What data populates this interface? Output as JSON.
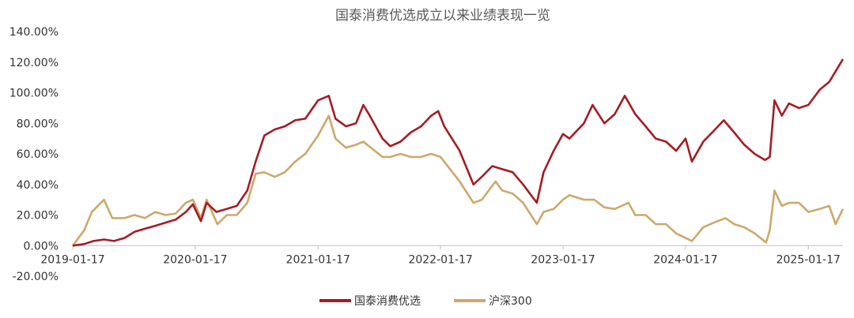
{
  "chart_data": {
    "type": "line",
    "title": "国泰消费优选成立以来业绩表现一览",
    "xlabel": "",
    "ylabel": "",
    "x_ticks": [
      "2019-01-17",
      "2020-01-17",
      "2021-01-17",
      "2022-01-17",
      "2023-01-17",
      "2024-01-17",
      "2025-01-17"
    ],
    "y_ticks": [
      "140.00%",
      "120.00%",
      "100.00%",
      "80.00%",
      "60.00%",
      "40.00%",
      "20.00%",
      "0.00%",
      "-20.00%"
    ],
    "y_tick_values": [
      140,
      120,
      100,
      80,
      60,
      40,
      20,
      0,
      -20
    ],
    "ylim": [
      -20,
      140
    ],
    "xlim": [
      "2019-01-17",
      "2025-04-30"
    ],
    "y_unit": "%",
    "grid": false,
    "legend_position": "bottom",
    "series": [
      {
        "name": "国泰消费优选",
        "color": "#a51c24",
        "points": [
          [
            "2019-01-17",
            0
          ],
          [
            "2019-02-20",
            1
          ],
          [
            "2019-03-20",
            3
          ],
          [
            "2019-04-20",
            4
          ],
          [
            "2019-05-20",
            3
          ],
          [
            "2019-06-20",
            5
          ],
          [
            "2019-07-20",
            9
          ],
          [
            "2019-08-20",
            11
          ],
          [
            "2019-09-20",
            13
          ],
          [
            "2019-10-20",
            15
          ],
          [
            "2019-11-20",
            17
          ],
          [
            "2019-12-20",
            22
          ],
          [
            "2020-01-10",
            27
          ],
          [
            "2020-02-03",
            16
          ],
          [
            "2020-02-20",
            28
          ],
          [
            "2020-03-20",
            22
          ],
          [
            "2020-04-20",
            24
          ],
          [
            "2020-05-20",
            26
          ],
          [
            "2020-06-20",
            36
          ],
          [
            "2020-07-15",
            55
          ],
          [
            "2020-08-10",
            72
          ],
          [
            "2020-09-10",
            76
          ],
          [
            "2020-10-10",
            78
          ],
          [
            "2020-11-10",
            82
          ],
          [
            "2020-12-10",
            83
          ],
          [
            "2021-01-17",
            95
          ],
          [
            "2021-02-18",
            98
          ],
          [
            "2021-03-10",
            83
          ],
          [
            "2021-04-10",
            78
          ],
          [
            "2021-05-10",
            80
          ],
          [
            "2021-06-01",
            92
          ],
          [
            "2021-06-20",
            85
          ],
          [
            "2021-07-28",
            70
          ],
          [
            "2021-08-20",
            65
          ],
          [
            "2021-09-20",
            68
          ],
          [
            "2021-10-20",
            74
          ],
          [
            "2021-11-20",
            78
          ],
          [
            "2021-12-20",
            85
          ],
          [
            "2022-01-10",
            88
          ],
          [
            "2022-01-28",
            78
          ],
          [
            "2022-03-15",
            62
          ],
          [
            "2022-04-25",
            40
          ],
          [
            "2022-05-20",
            45
          ],
          [
            "2022-06-20",
            52
          ],
          [
            "2022-07-20",
            50
          ],
          [
            "2022-08-20",
            48
          ],
          [
            "2022-09-20",
            40
          ],
          [
            "2022-10-31",
            28
          ],
          [
            "2022-11-20",
            48
          ],
          [
            "2022-12-20",
            62
          ],
          [
            "2023-01-17",
            73
          ],
          [
            "2023-02-05",
            70
          ],
          [
            "2023-03-20",
            80
          ],
          [
            "2023-04-15",
            92
          ],
          [
            "2023-05-20",
            80
          ],
          [
            "2023-06-20",
            86
          ],
          [
            "2023-07-20",
            98
          ],
          [
            "2023-08-20",
            86
          ],
          [
            "2023-09-20",
            78
          ],
          [
            "2023-10-20",
            70
          ],
          [
            "2023-11-20",
            68
          ],
          [
            "2023-12-20",
            62
          ],
          [
            "2024-01-17",
            70
          ],
          [
            "2024-02-05",
            55
          ],
          [
            "2024-03-10",
            68
          ],
          [
            "2024-04-10",
            75
          ],
          [
            "2024-05-10",
            82
          ],
          [
            "2024-06-10",
            74
          ],
          [
            "2024-07-10",
            66
          ],
          [
            "2024-08-10",
            60
          ],
          [
            "2024-09-10",
            56
          ],
          [
            "2024-09-24",
            58
          ],
          [
            "2024-10-08",
            95
          ],
          [
            "2024-10-30",
            85
          ],
          [
            "2024-11-20",
            93
          ],
          [
            "2024-12-20",
            90
          ],
          [
            "2025-01-17",
            92
          ],
          [
            "2025-02-20",
            102
          ],
          [
            "2025-03-20",
            107
          ],
          [
            "2025-04-30",
            122
          ]
        ]
      },
      {
        "name": "沪深300",
        "color": "#cda86c",
        "points": [
          [
            "2019-01-17",
            0
          ],
          [
            "2019-02-20",
            10
          ],
          [
            "2019-03-15",
            22
          ],
          [
            "2019-04-20",
            30
          ],
          [
            "2019-05-15",
            18
          ],
          [
            "2019-06-20",
            18
          ],
          [
            "2019-07-20",
            20
          ],
          [
            "2019-08-20",
            18
          ],
          [
            "2019-09-20",
            22
          ],
          [
            "2019-10-20",
            20
          ],
          [
            "2019-11-20",
            21
          ],
          [
            "2019-12-20",
            28
          ],
          [
            "2020-01-10",
            30
          ],
          [
            "2020-02-03",
            18
          ],
          [
            "2020-02-20",
            30
          ],
          [
            "2020-03-23",
            14
          ],
          [
            "2020-04-20",
            20
          ],
          [
            "2020-05-20",
            20
          ],
          [
            "2020-06-20",
            28
          ],
          [
            "2020-07-15",
            47
          ],
          [
            "2020-08-10",
            48
          ],
          [
            "2020-09-10",
            45
          ],
          [
            "2020-10-10",
            48
          ],
          [
            "2020-11-10",
            55
          ],
          [
            "2020-12-10",
            60
          ],
          [
            "2021-01-17",
            72
          ],
          [
            "2021-02-18",
            85
          ],
          [
            "2021-03-10",
            70
          ],
          [
            "2021-04-10",
            64
          ],
          [
            "2021-05-10",
            66
          ],
          [
            "2021-06-01",
            68
          ],
          [
            "2021-07-28",
            58
          ],
          [
            "2021-08-20",
            58
          ],
          [
            "2021-09-20",
            60
          ],
          [
            "2021-10-20",
            58
          ],
          [
            "2021-11-20",
            58
          ],
          [
            "2021-12-20",
            60
          ],
          [
            "2022-01-17",
            58
          ],
          [
            "2022-03-15",
            42
          ],
          [
            "2022-04-25",
            28
          ],
          [
            "2022-05-20",
            30
          ],
          [
            "2022-06-30",
            42
          ],
          [
            "2022-07-20",
            36
          ],
          [
            "2022-08-20",
            34
          ],
          [
            "2022-09-20",
            28
          ],
          [
            "2022-10-31",
            14
          ],
          [
            "2022-11-20",
            22
          ],
          [
            "2022-12-20",
            24
          ],
          [
            "2023-01-17",
            30
          ],
          [
            "2023-02-05",
            33
          ],
          [
            "2023-03-20",
            30
          ],
          [
            "2023-04-20",
            30
          ],
          [
            "2023-05-20",
            25
          ],
          [
            "2023-06-20",
            24
          ],
          [
            "2023-07-31",
            28
          ],
          [
            "2023-08-20",
            20
          ],
          [
            "2023-09-20",
            20
          ],
          [
            "2023-10-20",
            14
          ],
          [
            "2023-11-20",
            14
          ],
          [
            "2023-12-20",
            8
          ],
          [
            "2024-01-17",
            5
          ],
          [
            "2024-02-05",
            3
          ],
          [
            "2024-03-10",
            12
          ],
          [
            "2024-04-10",
            15
          ],
          [
            "2024-05-15",
            18
          ],
          [
            "2024-06-10",
            14
          ],
          [
            "2024-07-10",
            12
          ],
          [
            "2024-08-10",
            8
          ],
          [
            "2024-09-13",
            2
          ],
          [
            "2024-09-24",
            10
          ],
          [
            "2024-10-08",
            36
          ],
          [
            "2024-10-30",
            26
          ],
          [
            "2024-11-20",
            28
          ],
          [
            "2024-12-20",
            28
          ],
          [
            "2025-01-17",
            22
          ],
          [
            "2025-02-20",
            24
          ],
          [
            "2025-03-20",
            26
          ],
          [
            "2025-04-08",
            14
          ],
          [
            "2025-04-30",
            24
          ]
        ]
      }
    ]
  }
}
